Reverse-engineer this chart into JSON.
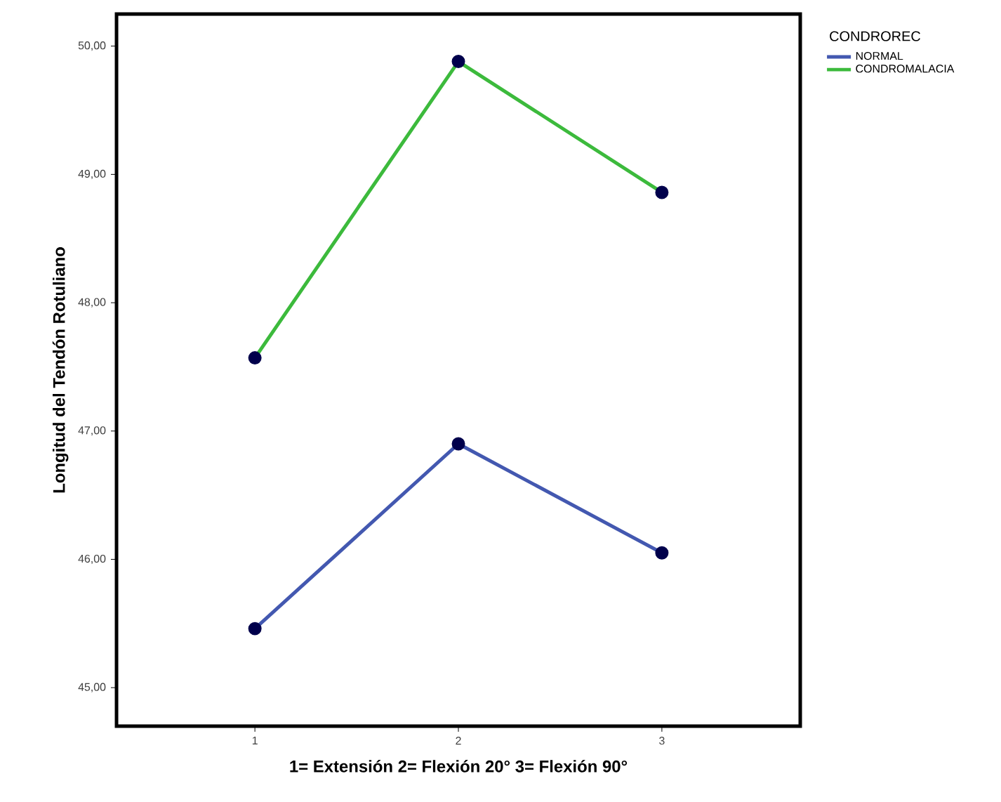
{
  "chart_data": {
    "type": "line",
    "xlabel": "1= Extensión  2= Flexión 20°  3= Flexión 90°",
    "ylabel": "Longitud del Tendón Rotuliano",
    "legend_title": "CONDROREC",
    "x": [
      1,
      2,
      3
    ],
    "series": [
      {
        "name": "NORMAL",
        "color": "#4358b0",
        "values": [
          45.46,
          46.9,
          46.05
        ]
      },
      {
        "name": "CONDROMALACIA",
        "color": "#3cba3c",
        "values": [
          47.57,
          49.88,
          48.86
        ]
      }
    ],
    "xlim": [
      0.32,
      3.68
    ],
    "xticks": [
      1,
      2,
      3
    ],
    "ylim": [
      44.7,
      50.25
    ],
    "yticks": [
      {
        "value": 45,
        "label": "45,00"
      },
      {
        "value": 46,
        "label": "46,00"
      },
      {
        "value": 47,
        "label": "47,00"
      },
      {
        "value": 48,
        "label": "48,00"
      },
      {
        "value": 49,
        "label": "49,00"
      },
      {
        "value": 50,
        "label": "50,00"
      }
    ],
    "legend": "top right",
    "marker": "circle",
    "line_style": "solid",
    "grid": false
  }
}
